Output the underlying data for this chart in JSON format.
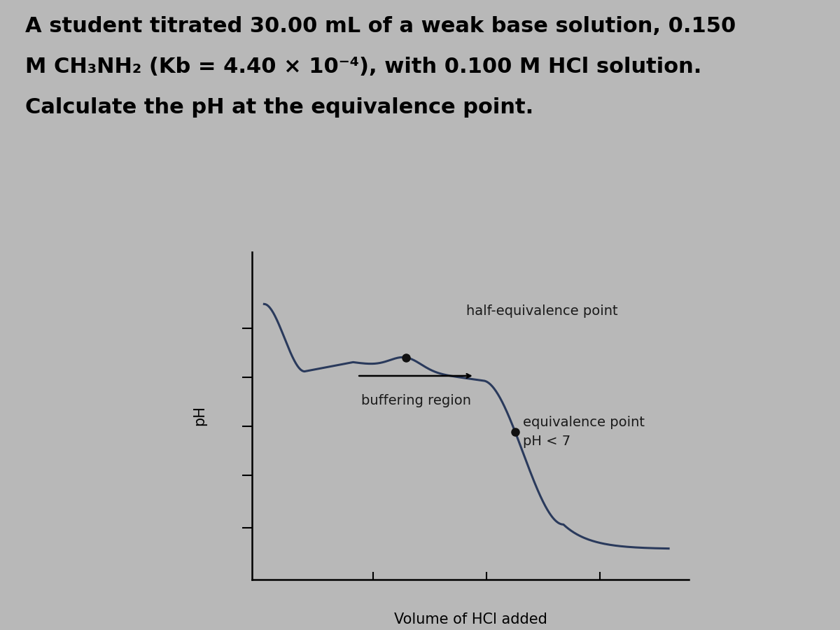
{
  "background_color": "#b8b8b8",
  "top_bar_color": "#c0392b",
  "title_text_line1": "A student titrated 30.00 mL of a weak base solution, 0.150",
  "title_text_line2": "M CH₃NH₂ (Kb = 4.40 × 10⁻⁴), with 0.100 M HCl solution.",
  "title_text_line3": "Calculate the pH at the equivalence point.",
  "xlabel": "Volume of HCl added",
  "ylabel": "pH",
  "curve_color": "#2a3a5c",
  "annotation_color": "#1a1a1a",
  "dot_color": "#111111",
  "half_eq_label": "half-equivalence point",
  "buffering_label": "buffering region",
  "eq_label_line1": "equivalence point",
  "eq_label_line2": "pH < 7",
  "title_fontsize": 22,
  "label_fontsize": 15,
  "annotation_fontsize": 14,
  "title_fontweight": "bold"
}
